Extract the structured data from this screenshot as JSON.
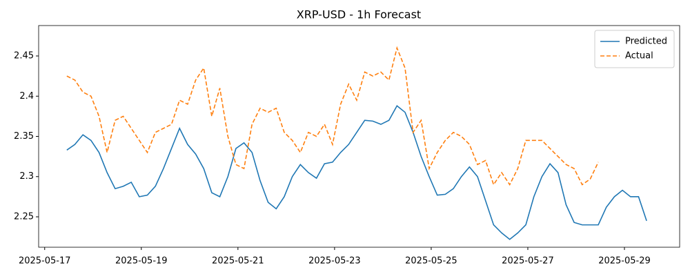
{
  "chart_data": {
    "type": "line",
    "title": "XRP-USD - 1h Forecast",
    "x": [
      "2025-05-17T11:00",
      "2025-05-17T15:00",
      "2025-05-17T19:00",
      "2025-05-17T23:00",
      "2025-05-18T03:00",
      "2025-05-18T07:00",
      "2025-05-18T11:00",
      "2025-05-18T15:00",
      "2025-05-18T19:00",
      "2025-05-18T23:00",
      "2025-05-19T03:00",
      "2025-05-19T07:00",
      "2025-05-19T11:00",
      "2025-05-19T15:00",
      "2025-05-19T19:00",
      "2025-05-19T23:00",
      "2025-05-20T03:00",
      "2025-05-20T07:00",
      "2025-05-20T11:00",
      "2025-05-20T15:00",
      "2025-05-20T19:00",
      "2025-05-20T23:00",
      "2025-05-21T03:00",
      "2025-05-21T07:00",
      "2025-05-21T11:00",
      "2025-05-21T15:00",
      "2025-05-21T19:00",
      "2025-05-21T23:00",
      "2025-05-22T03:00",
      "2025-05-22T07:00",
      "2025-05-22T11:00",
      "2025-05-22T15:00",
      "2025-05-22T19:00",
      "2025-05-22T23:00",
      "2025-05-23T03:00",
      "2025-05-23T07:00",
      "2025-05-23T11:00",
      "2025-05-23T15:00",
      "2025-05-23T19:00",
      "2025-05-23T23:00",
      "2025-05-24T03:00",
      "2025-05-24T07:00",
      "2025-05-24T11:00",
      "2025-05-24T15:00",
      "2025-05-24T19:00",
      "2025-05-24T23:00",
      "2025-05-25T03:00",
      "2025-05-25T07:00",
      "2025-05-25T11:00",
      "2025-05-25T15:00",
      "2025-05-25T19:00",
      "2025-05-25T23:00",
      "2025-05-26T03:00",
      "2025-05-26T07:00",
      "2025-05-26T11:00",
      "2025-05-26T15:00",
      "2025-05-26T19:00",
      "2025-05-26T23:00",
      "2025-05-27T03:00",
      "2025-05-27T07:00",
      "2025-05-27T11:00",
      "2025-05-27T15:00",
      "2025-05-27T19:00",
      "2025-05-27T23:00",
      "2025-05-28T03:00",
      "2025-05-28T07:00",
      "2025-05-28T11:00",
      "2025-05-28T15:00",
      "2025-05-28T19:00",
      "2025-05-28T23:00",
      "2025-05-29T03:00",
      "2025-05-29T07:00",
      "2025-05-29T11:00"
    ],
    "series": [
      {
        "name": "Predicted",
        "color": "#1f77b4",
        "dash": false,
        "values": [
          2.333,
          2.34,
          2.352,
          2.345,
          2.33,
          2.305,
          2.285,
          2.288,
          2.293,
          2.275,
          2.277,
          2.288,
          2.31,
          2.335,
          2.36,
          2.34,
          2.328,
          2.31,
          2.28,
          2.275,
          2.3,
          2.335,
          2.342,
          2.33,
          2.295,
          2.268,
          2.26,
          2.275,
          2.3,
          2.315,
          2.305,
          2.298,
          2.316,
          2.318,
          2.33,
          2.34,
          2.355,
          2.37,
          2.369,
          2.365,
          2.37,
          2.388,
          2.38,
          2.355,
          2.325,
          2.3,
          2.277,
          2.278,
          2.285,
          2.3,
          2.312,
          2.3,
          2.27,
          2.24,
          2.23,
          2.222,
          2.23,
          2.24,
          2.275,
          2.3,
          2.316,
          2.305,
          2.265,
          2.243,
          2.24,
          2.24,
          2.24,
          2.262,
          2.275,
          2.283,
          2.275,
          2.275,
          2.245
        ]
      },
      {
        "name": "Actual",
        "color": "#ff7f0e",
        "dash": true,
        "values": [
          2.425,
          2.42,
          2.405,
          2.4,
          2.375,
          2.33,
          2.37,
          2.375,
          2.36,
          2.345,
          2.33,
          2.355,
          2.36,
          2.365,
          2.395,
          2.39,
          2.42,
          2.435,
          2.375,
          2.41,
          2.35,
          2.315,
          2.31,
          2.365,
          2.385,
          2.38,
          2.385,
          2.355,
          2.345,
          2.33,
          2.355,
          2.35,
          2.365,
          2.34,
          2.39,
          2.415,
          2.395,
          2.43,
          2.425,
          2.43,
          2.42,
          2.46,
          2.435,
          2.355,
          2.37,
          2.31,
          2.33,
          2.345,
          2.355,
          2.35,
          2.34,
          2.315,
          2.32,
          2.29,
          2.305,
          2.29,
          2.31,
          2.345,
          2.345,
          2.345,
          2.335,
          2.325,
          2.315,
          2.31,
          2.29,
          2.297,
          2.318,
          null,
          null,
          null,
          null,
          null,
          null
        ]
      }
    ],
    "xlim": [
      "2025-05-16T21:00",
      "2025-05-30T03:25"
    ],
    "xticks": [
      "2025-05-17",
      "2025-05-19",
      "2025-05-21",
      "2025-05-23",
      "2025-05-25",
      "2025-05-27",
      "2025-05-29"
    ],
    "ylim": [
      2.2122,
      2.4878
    ],
    "yticks": [
      2.25,
      2.3,
      2.35,
      2.4,
      2.45
    ],
    "legend": "upper right"
  }
}
